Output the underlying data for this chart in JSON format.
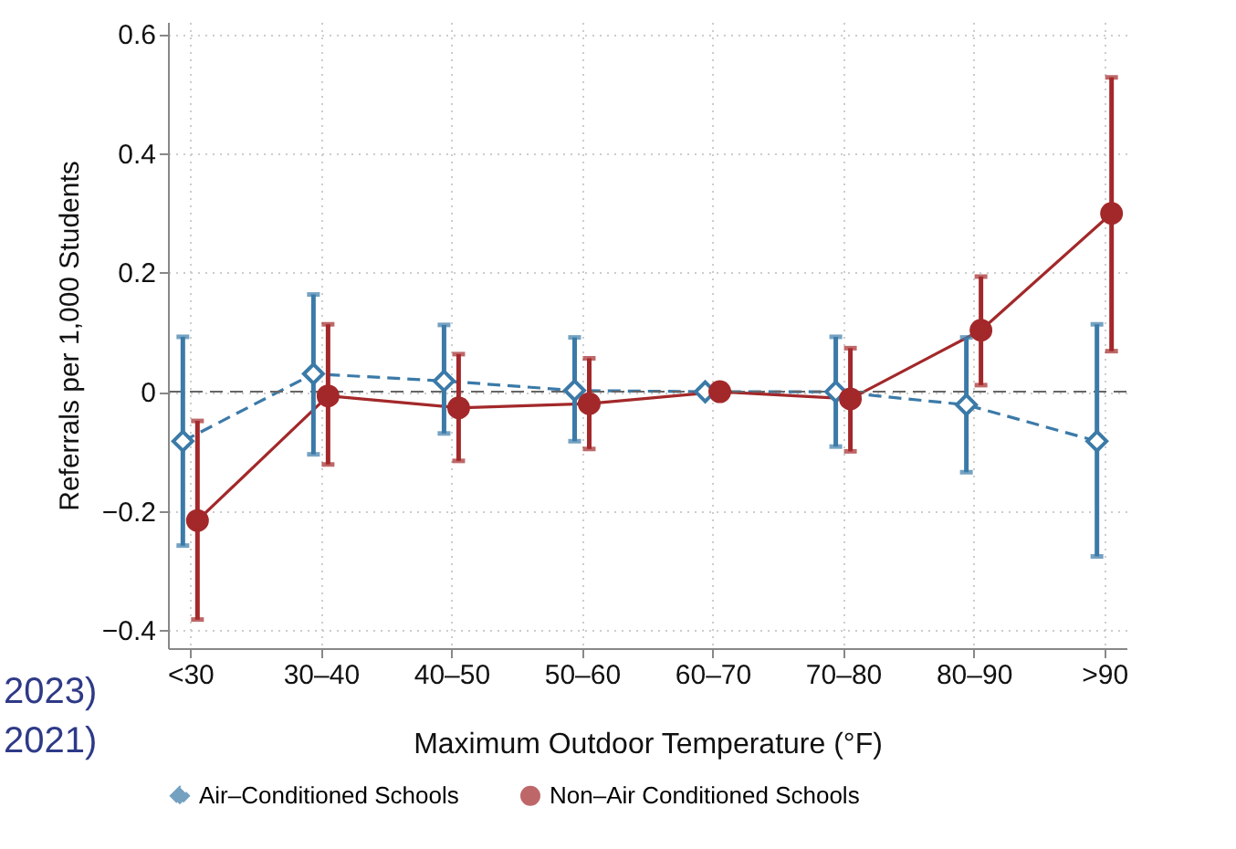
{
  "chart_data": {
    "type": "line",
    "xlabel": "Maximum Outdoor Temperature (°F)",
    "ylabel": "Referrals per 1,000 Students",
    "categories": [
      "<30",
      "30–40",
      "40–50",
      "50–60",
      "60–70",
      "70–80",
      "80–90",
      ">90"
    ],
    "series": [
      {
        "name": "Air–Conditioned Schools",
        "color": "#3b7aa8",
        "marker": "diamond",
        "line_style": "dashed",
        "values": [
          -0.083,
          0.03,
          0.018,
          0.002,
          0,
          0,
          -0.022,
          -0.083
        ],
        "errors": [
          [
            -0.258,
            0.092
          ],
          [
            -0.105,
            0.163
          ],
          [
            -0.07,
            0.112
          ],
          [
            -0.083,
            0.091
          ],
          null,
          [
            -0.092,
            0.092
          ],
          [
            -0.135,
            0.091
          ],
          [
            -0.276,
            0.113
          ]
        ]
      },
      {
        "name": "Non–Air Conditioned Schools",
        "color": "#a3282a",
        "marker": "circle",
        "line_style": "solid",
        "values": [
          -0.216,
          -0.007,
          -0.027,
          -0.02,
          0,
          -0.012,
          0.103,
          0.299
        ],
        "errors": [
          [
            -0.382,
            -0.049
          ],
          [
            -0.122,
            0.113
          ],
          [
            -0.116,
            0.063
          ],
          [
            -0.096,
            0.056
          ],
          null,
          [
            -0.1,
            0.073
          ],
          [
            0.011,
            0.193
          ],
          [
            0.068,
            0.527
          ]
        ]
      }
    ],
    "ylim": [
      -0.43,
      0.62
    ],
    "yticks": [
      -0.4,
      -0.2,
      0,
      0.2,
      0.4,
      0.6
    ],
    "ref_lines": [
      {
        "axis": "y",
        "value": 0,
        "color": "#666666",
        "line_style": "dashed"
      }
    ],
    "grid": true,
    "legend": "bottom",
    "annotations": [
      "2023)",
      "2021)"
    ]
  }
}
